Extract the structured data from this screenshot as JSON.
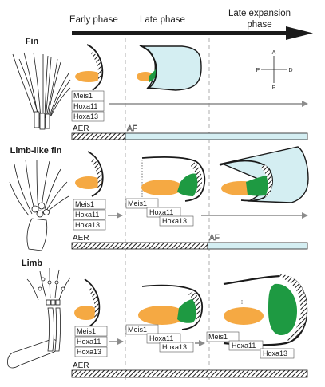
{
  "header": {
    "phases": [
      "Early phase",
      "Late phase",
      "Late expansion phase"
    ],
    "late_expansion_lines": [
      "Late expansion",
      "phase"
    ]
  },
  "colors": {
    "mesenchyme": "#f5a943",
    "hoxa13_domain": "#1e9a42",
    "fin_fold": "#d4eef2",
    "outline": "#1a1a1a",
    "arrow": "#8c8c8c"
  },
  "axes": {
    "top": "A",
    "left": "P",
    "right": "D",
    "bottom": "P"
  },
  "rows": [
    {
      "title": "Fin",
      "genes": [
        "Meis1",
        "Hoxa11",
        "Hoxa13"
      ],
      "ridge_labels": [
        "AER",
        "AF"
      ]
    },
    {
      "title": "Limb-like fin",
      "genes_early": [
        "Meis1",
        "Hoxa11",
        "Hoxa13"
      ],
      "genes_late": [
        "Meis1",
        "Hoxa11",
        "Hoxa13"
      ],
      "ridge_labels": [
        "AER",
        "AF"
      ]
    },
    {
      "title": "Limb",
      "genes_early": [
        "Meis1",
        "Hoxa11",
        "Hoxa13"
      ],
      "genes_late": [
        "Meis1",
        "Hoxa11",
        "Hoxa13"
      ],
      "genes_expansion": [
        "Meis1",
        "Hoxa11",
        "Hoxa13"
      ],
      "ridge_labels": [
        "AER"
      ]
    }
  ]
}
